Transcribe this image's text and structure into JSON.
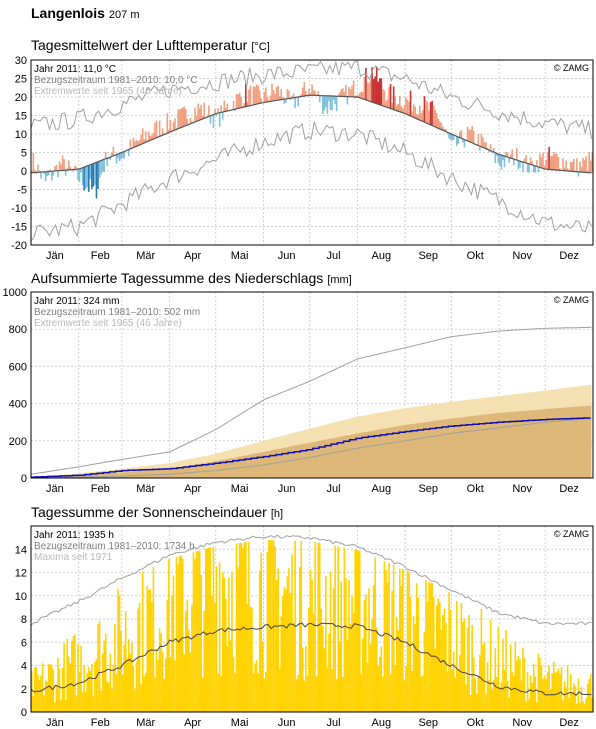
{
  "station": {
    "name": "Langenlois",
    "elevation": "207 m"
  },
  "months": [
    "Jän",
    "Feb",
    "Mär",
    "Apr",
    "Mai",
    "Jun",
    "Jul",
    "Aug",
    "Sep",
    "Okt",
    "Nov",
    "Dez"
  ],
  "copyright": "© ZAMG",
  "colors": {
    "warm": "#f0a080",
    "warm_strong": "#c83232",
    "cold": "#80c0dc",
    "cold_strong": "#2a7ab0",
    "precip_year": "#1010b0",
    "precip_ref": "#f4e0b0",
    "precip_ref_dark": "#d8b070",
    "sun": "#ffd200"
  },
  "chart_data": [
    {
      "id": "temperature",
      "type": "bar",
      "title": "Tagesmittelwert der Lufttemperatur",
      "unit": "[°C]",
      "legend": [
        "Jahr 2011: 11,0 °C",
        "Bezugszeitraum 1981–2010: 10,0 °C",
        "Extremwerte seit 1965 (46 Jahre)"
      ],
      "ylim": [
        -20,
        30
      ],
      "yticks": [
        -20,
        -15,
        -10,
        -5,
        0,
        5,
        10,
        15,
        20,
        25,
        30
      ],
      "x_unit": "day of year",
      "reference_mean": {
        "x": [
          1,
          32,
          60,
          91,
          121,
          152,
          182,
          213,
          244,
          274,
          305,
          335,
          365
        ],
        "y": [
          -0.5,
          0.5,
          5,
          10.5,
          15.5,
          18.5,
          20.5,
          20,
          15.5,
          10,
          4.5,
          0.5,
          -0.5
        ]
      },
      "extreme_max": {
        "x": [
          1,
          32,
          60,
          91,
          121,
          152,
          182,
          213,
          244,
          274,
          305,
          335,
          365
        ],
        "y": [
          12,
          14,
          18,
          22,
          24,
          26,
          27,
          28,
          25,
          20,
          16,
          13,
          11
        ]
      },
      "extreme_min": {
        "x": [
          1,
          32,
          60,
          91,
          121,
          152,
          182,
          213,
          244,
          274,
          305,
          335,
          365
        ],
        "y": [
          -17,
          -15,
          -9,
          -2,
          3,
          8,
          11,
          10,
          5,
          -2,
          -8,
          -14,
          -16
        ]
      },
      "series_2011": {
        "x": [
          1,
          10,
          20,
          32,
          42,
          50,
          60,
          70,
          80,
          91,
          100,
          110,
          121,
          130,
          140,
          152,
          160,
          170,
          182,
          192,
          200,
          213,
          222,
          232,
          244,
          255,
          265,
          274,
          285,
          295,
          305,
          315,
          325,
          335,
          345,
          355,
          365
        ],
        "y": [
          3,
          -3,
          2,
          -2,
          -6,
          4,
          4,
          8,
          11,
          13,
          15,
          17,
          14,
          18,
          21,
          20,
          22,
          18,
          23,
          17,
          19,
          23,
          27,
          21,
          19,
          18,
          15,
          6,
          10,
          7,
          2,
          4,
          1,
          4,
          3,
          1,
          3
        ]
      }
    },
    {
      "id": "precipitation",
      "type": "area",
      "title": "Aufsummierte Tagessumme des Niederschlags",
      "unit": "[mm]",
      "legend": [
        "Jahr 2011: 324 mm",
        "Bezugszeitraum 1981–2010: 502 mm",
        "Extremwerte seit 1965 (46 Jahre)"
      ],
      "ylim": [
        0,
        1000
      ],
      "yticks": [
        0,
        200,
        400,
        600,
        800,
        1000
      ],
      "x_unit": "day of year",
      "reference_mean": {
        "x": [
          1,
          32,
          60,
          91,
          121,
          152,
          182,
          213,
          244,
          274,
          305,
          335,
          365
        ],
        "y": [
          0,
          25,
          50,
          80,
          130,
          200,
          265,
          330,
          375,
          410,
          440,
          470,
          502
        ]
      },
      "reference_band": {
        "x": [
          1,
          32,
          60,
          91,
          121,
          152,
          182,
          213,
          244,
          274,
          305,
          335,
          365
        ],
        "low": [
          0,
          15,
          30,
          50,
          90,
          140,
          190,
          240,
          285,
          320,
          350,
          370,
          390
        ],
        "high": [
          0,
          25,
          50,
          80,
          130,
          200,
          265,
          330,
          375,
          410,
          440,
          470,
          502
        ]
      },
      "extreme_max": {
        "x": [
          1,
          32,
          60,
          91,
          121,
          152,
          182,
          213,
          244,
          274,
          305,
          335,
          365
        ],
        "y": [
          20,
          60,
          100,
          140,
          260,
          420,
          520,
          640,
          700,
          760,
          790,
          805,
          810
        ]
      },
      "extreme_min": {
        "x": [
          1,
          32,
          60,
          91,
          121,
          152,
          182,
          213,
          244,
          274,
          305,
          335,
          365
        ],
        "y": [
          0,
          5,
          10,
          20,
          40,
          70,
          110,
          160,
          200,
          240,
          270,
          300,
          320
        ]
      },
      "series_2011": {
        "x": [
          1,
          32,
          60,
          91,
          121,
          152,
          182,
          213,
          244,
          274,
          305,
          335,
          365
        ],
        "y": [
          5,
          15,
          40,
          50,
          80,
          115,
          155,
          215,
          250,
          280,
          300,
          315,
          324
        ]
      }
    },
    {
      "id": "sunshine",
      "type": "bar",
      "title": "Tagessumme der Sonnenscheindauer",
      "unit": "[h]",
      "legend": [
        "Jahr 2011: 1935 h",
        "Bezugszeitraum 1981–2010: 1734 h",
        "Maxima seit 1971"
      ],
      "ylim": [
        0,
        16
      ],
      "yticks": [
        0,
        2,
        4,
        6,
        8,
        10,
        12,
        14
      ],
      "x_unit": "day of year",
      "reference_mean": {
        "x": [
          1,
          32,
          60,
          91,
          121,
          152,
          182,
          213,
          244,
          274,
          305,
          335,
          365
        ],
        "y": [
          1.8,
          2.5,
          4,
          6,
          7,
          7.3,
          7.5,
          7.4,
          6,
          4,
          2.2,
          1.6,
          1.6
        ]
      },
      "maxima": {
        "x": [
          1,
          32,
          60,
          91,
          121,
          152,
          182,
          213,
          244,
          274,
          305,
          335,
          365
        ],
        "y": [
          7.6,
          9.5,
          11.5,
          13.5,
          14.6,
          15.1,
          15.0,
          14.2,
          12.5,
          10.5,
          8.5,
          7.6,
          7.6
        ]
      },
      "series_2011": {
        "x": [
          1,
          32,
          60,
          91,
          121,
          152,
          182,
          213,
          244,
          274,
          305,
          335,
          365
        ],
        "y": [
          2,
          4,
          6,
          9,
          11,
          10,
          9,
          9,
          8,
          6,
          4,
          2.5,
          2
        ]
      }
    }
  ]
}
